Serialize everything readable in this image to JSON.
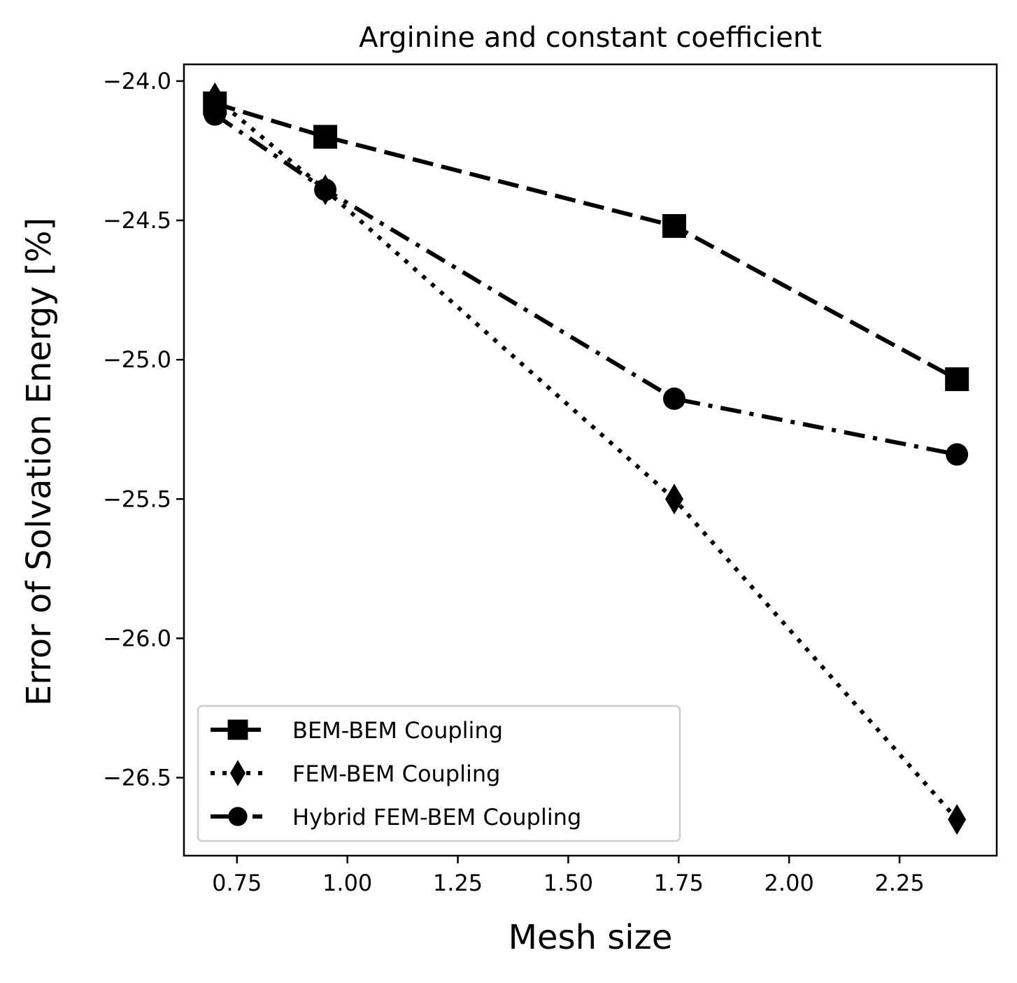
{
  "chart_data": {
    "type": "line",
    "title": "Arginine and constant coefficient",
    "xlabel": "Mesh size",
    "ylabel": "Error of Solvation Energy [%]",
    "xlim": [
      0.63,
      2.47
    ],
    "ylim": [
      -26.78,
      -23.94
    ],
    "xticks": [
      0.75,
      1.0,
      1.25,
      1.5,
      1.75,
      2.0,
      2.25
    ],
    "xtick_labels": [
      "0.75",
      "1.00",
      "1.25",
      "1.50",
      "1.75",
      "2.00",
      "2.25"
    ],
    "yticks": [
      -24.0,
      -24.5,
      -25.0,
      -25.5,
      -26.0,
      -26.5
    ],
    "ytick_labels": [
      "−24.0",
      "−24.5",
      "−25.0",
      "−25.5",
      "−26.0",
      "−26.5"
    ],
    "grid": false,
    "legend_position": "lower-left",
    "color": "#000000",
    "series": [
      {
        "name": "BEM-BEM Coupling",
        "marker": "square",
        "linestyle": "dashed",
        "x": [
          0.7,
          0.95,
          1.74,
          2.38
        ],
        "y": [
          -24.08,
          -24.2,
          -24.52,
          -25.07
        ]
      },
      {
        "name": "FEM-BEM Coupling",
        "marker": "diamond",
        "linestyle": "dotted",
        "x": [
          0.7,
          0.95,
          1.74,
          2.38
        ],
        "y": [
          -24.06,
          -24.39,
          -25.5,
          -26.65
        ]
      },
      {
        "name": "Hybrid FEM-BEM Coupling",
        "marker": "circle",
        "linestyle": "dashdot",
        "x": [
          0.7,
          0.95,
          1.74,
          2.38
        ],
        "y": [
          -24.12,
          -24.39,
          -25.14,
          -25.34
        ]
      }
    ]
  }
}
